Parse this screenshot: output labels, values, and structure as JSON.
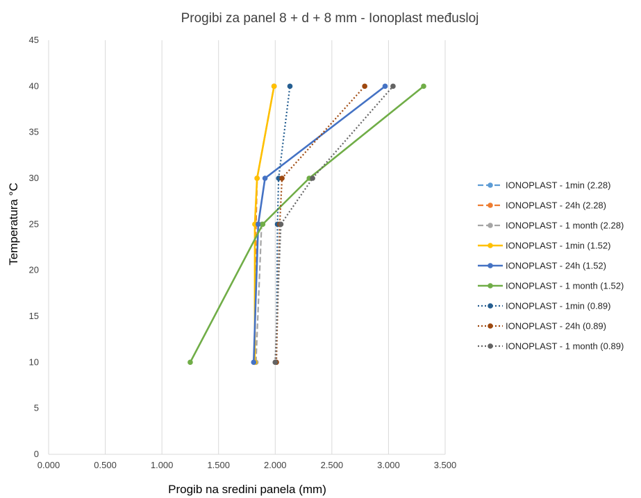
{
  "chart_data": {
    "type": "scatter",
    "title": "Progibi za panel 8 + d + 8 mm - Ionoplast međusloj",
    "xlabel": "Progib na sredini panela (mm)",
    "ylabel": "Temperatura °C",
    "xlim": [
      0,
      3.5
    ],
    "ylim": [
      0,
      45
    ],
    "x_ticks": [
      "0.000",
      "0.500",
      "1.000",
      "1.500",
      "2.000",
      "2.500",
      "3.000",
      "3.500"
    ],
    "y_ticks": [
      "0",
      "5",
      "10",
      "15",
      "20",
      "25",
      "30",
      "35",
      "40",
      "45"
    ],
    "grid": "vertical",
    "legend_position": "right",
    "series": [
      {
        "name": "IONOPLAST - 1min (2.28)",
        "color": "#5b9bd5",
        "style": "dashed",
        "points": [
          [
            1.82,
            10
          ],
          [
            1.83,
            25
          ],
          [
            1.84,
            30
          ],
          [
            1.99,
            40
          ]
        ]
      },
      {
        "name": "IONOPLAST - 24h (2.28)",
        "color": "#ed7d31",
        "style": "dashed",
        "points": [
          [
            1.82,
            10
          ],
          [
            1.83,
            25
          ],
          [
            1.84,
            30
          ],
          [
            1.99,
            40
          ]
        ]
      },
      {
        "name": "IONOPLAST - 1 month (2.28)",
        "color": "#a5a5a5",
        "style": "dashed",
        "points": [
          [
            1.83,
            10
          ],
          [
            1.88,
            25
          ]
        ]
      },
      {
        "name": "IONOPLAST - 1min (1.52)",
        "color": "#ffc000",
        "style": "solid",
        "points": [
          [
            1.82,
            10
          ],
          [
            1.82,
            25
          ],
          [
            1.84,
            30
          ],
          [
            1.99,
            40
          ]
        ]
      },
      {
        "name": "IONOPLAST - 24h (1.52)",
        "color": "#4472c4",
        "style": "solid",
        "points": [
          [
            1.81,
            10
          ],
          [
            1.85,
            25
          ],
          [
            1.91,
            30
          ],
          [
            2.97,
            40
          ]
        ]
      },
      {
        "name": "IONOPLAST - 1 month (1.52)",
        "color": "#70ad47",
        "style": "solid",
        "points": [
          [
            1.25,
            10
          ],
          [
            1.89,
            25
          ],
          [
            2.3,
            30
          ],
          [
            3.31,
            40
          ]
        ]
      },
      {
        "name": "IONOPLAST - 1min (0.89)",
        "color": "#255e91",
        "style": "dotted",
        "points": [
          [
            2.01,
            10
          ],
          [
            2.02,
            25
          ],
          [
            2.03,
            30
          ],
          [
            2.13,
            40
          ]
        ]
      },
      {
        "name": "IONOPLAST - 24h (0.89)",
        "color": "#9e480e",
        "style": "dotted",
        "points": [
          [
            2.01,
            10
          ],
          [
            2.04,
            25
          ],
          [
            2.06,
            30
          ],
          [
            2.79,
            40
          ]
        ]
      },
      {
        "name": "IONOPLAST - 1 month (0.89)",
        "color": "#636363",
        "style": "dotted",
        "points": [
          [
            2.0,
            10
          ],
          [
            2.05,
            25
          ],
          [
            2.33,
            30
          ],
          [
            3.04,
            40
          ]
        ]
      }
    ]
  }
}
